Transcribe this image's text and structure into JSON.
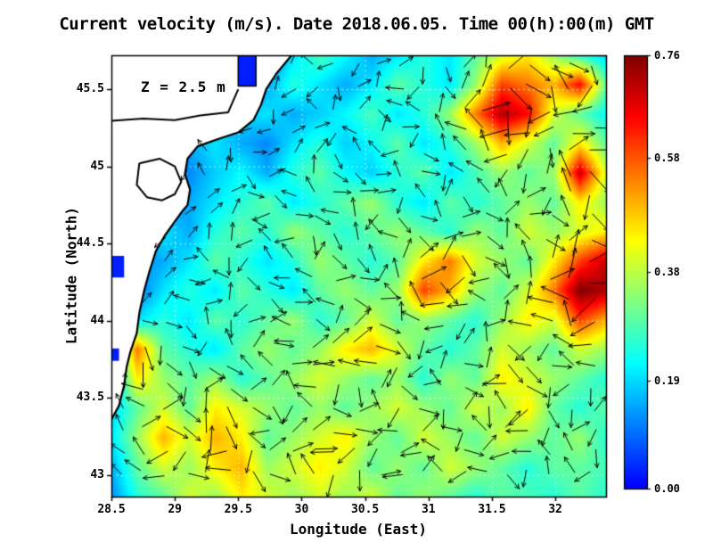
{
  "chart_data": {
    "type": "heatmap",
    "title": "Current velocity (m/s). Date 2018.06.05. Time 00(h):00(m) GMT",
    "annotation": "Z = 2.5 m",
    "xlabel": "Longitude (East)",
    "ylabel": "Latitude (North)",
    "x_ticks": [
      "28.5",
      "29",
      "29.5",
      "30",
      "30.5",
      "31",
      "31.5",
      "32"
    ],
    "x_tick_values": [
      28.5,
      29,
      29.5,
      30,
      30.5,
      31,
      31.5,
      32
    ],
    "y_ticks": [
      "43",
      "43.5",
      "44",
      "44.5",
      "45",
      "45.5"
    ],
    "y_tick_values": [
      43,
      43.5,
      44,
      44.5,
      45,
      45.5
    ],
    "lon_min": 28.5,
    "lon_max": 32.4,
    "lat_min": 42.86,
    "lat_max": 45.72,
    "vmin": 0.0,
    "vmax": 0.76,
    "grid_on": true,
    "colorbar": {
      "ticks": [
        "0.76",
        "0.58",
        "0.38",
        "0.19",
        "0.00"
      ],
      "tick_values": [
        0.76,
        0.58,
        0.38,
        0.19,
        0.0
      ],
      "top_color": "#7f0000",
      "bottom_color": "#0040ff"
    },
    "nx": 20,
    "ny": 16,
    "values": [
      [
        0.1,
        0.1,
        0.12,
        0.15,
        0.12,
        0.05,
        0.1,
        0.2,
        0.28,
        0.22,
        0.15,
        0.2,
        0.25,
        0.2,
        0.3,
        0.4,
        0.45,
        0.35,
        0.25,
        0.18
      ],
      [
        0.08,
        0.1,
        0.12,
        0.1,
        0.15,
        0.08,
        0.15,
        0.25,
        0.2,
        0.15,
        0.2,
        0.3,
        0.25,
        0.2,
        0.35,
        0.6,
        0.55,
        0.5,
        0.65,
        0.3
      ],
      [
        0.08,
        0.1,
        0.1,
        0.12,
        0.15,
        0.18,
        0.2,
        0.15,
        0.18,
        0.22,
        0.28,
        0.2,
        0.25,
        0.35,
        0.55,
        0.72,
        0.65,
        0.4,
        0.3,
        0.22
      ],
      [
        0.1,
        0.08,
        0.12,
        0.15,
        0.2,
        0.15,
        0.12,
        0.2,
        0.25,
        0.18,
        0.22,
        0.3,
        0.2,
        0.25,
        0.35,
        0.5,
        0.4,
        0.3,
        0.45,
        0.3
      ],
      [
        0.08,
        0.1,
        0.15,
        0.12,
        0.18,
        0.22,
        0.15,
        0.25,
        0.3,
        0.22,
        0.18,
        0.25,
        0.3,
        0.2,
        0.28,
        0.35,
        0.3,
        0.35,
        0.7,
        0.4
      ],
      [
        0.1,
        0.12,
        0.1,
        0.15,
        0.2,
        0.25,
        0.3,
        0.2,
        0.25,
        0.3,
        0.35,
        0.25,
        0.2,
        0.3,
        0.25,
        0.3,
        0.35,
        0.3,
        0.45,
        0.35
      ],
      [
        0.12,
        0.15,
        0.2,
        0.15,
        0.25,
        0.3,
        0.25,
        0.35,
        0.3,
        0.25,
        0.3,
        0.35,
        0.3,
        0.25,
        0.35,
        0.3,
        0.4,
        0.35,
        0.4,
        0.45
      ],
      [
        0.1,
        0.12,
        0.15,
        0.2,
        0.3,
        0.25,
        0.2,
        0.25,
        0.35,
        0.3,
        0.25,
        0.3,
        0.45,
        0.55,
        0.4,
        0.35,
        0.3,
        0.45,
        0.6,
        0.7
      ],
      [
        0.12,
        0.1,
        0.2,
        0.25,
        0.2,
        0.3,
        0.25,
        0.2,
        0.3,
        0.35,
        0.3,
        0.35,
        0.6,
        0.5,
        0.35,
        0.3,
        0.4,
        0.55,
        0.76,
        0.72
      ],
      [
        0.15,
        0.2,
        0.25,
        0.2,
        0.3,
        0.25,
        0.3,
        0.35,
        0.25,
        0.3,
        0.4,
        0.3,
        0.35,
        0.3,
        0.25,
        0.35,
        0.45,
        0.4,
        0.6,
        0.5
      ],
      [
        0.2,
        0.55,
        0.3,
        0.25,
        0.2,
        0.3,
        0.35,
        0.3,
        0.35,
        0.45,
        0.5,
        0.4,
        0.3,
        0.25,
        0.3,
        0.4,
        0.35,
        0.3,
        0.4,
        0.35
      ],
      [
        0.15,
        0.45,
        0.35,
        0.3,
        0.35,
        0.25,
        0.3,
        0.35,
        0.4,
        0.35,
        0.3,
        0.35,
        0.25,
        0.35,
        0.3,
        0.45,
        0.4,
        0.35,
        0.3,
        0.25
      ],
      [
        0.18,
        0.3,
        0.4,
        0.3,
        0.45,
        0.4,
        0.35,
        0.3,
        0.35,
        0.3,
        0.35,
        0.4,
        0.35,
        0.3,
        0.4,
        0.35,
        0.45,
        0.3,
        0.25,
        0.3
      ],
      [
        0.2,
        0.35,
        0.5,
        0.4,
        0.5,
        0.45,
        0.3,
        0.35,
        0.4,
        0.45,
        0.35,
        0.3,
        0.4,
        0.35,
        0.3,
        0.4,
        0.35,
        0.3,
        0.35,
        0.25
      ],
      [
        0.15,
        0.3,
        0.4,
        0.35,
        0.45,
        0.5,
        0.35,
        0.4,
        0.45,
        0.4,
        0.3,
        0.35,
        0.3,
        0.4,
        0.35,
        0.3,
        0.25,
        0.3,
        0.3,
        0.28
      ],
      [
        0.12,
        0.25,
        0.3,
        0.4,
        0.35,
        0.45,
        0.4,
        0.35,
        0.4,
        0.35,
        0.4,
        0.3,
        0.35,
        0.3,
        0.25,
        0.3,
        0.28,
        0.25,
        0.3,
        0.25
      ]
    ],
    "coastline": [
      [
        29.92,
        45.72
      ],
      [
        29.8,
        45.6
      ],
      [
        29.72,
        45.5
      ],
      [
        29.68,
        45.4
      ],
      [
        29.62,
        45.3
      ],
      [
        29.5,
        45.22
      ],
      [
        29.35,
        45.18
      ],
      [
        29.18,
        45.13
      ],
      [
        29.1,
        45.05
      ],
      [
        29.08,
        44.95
      ],
      [
        29.12,
        44.85
      ],
      [
        29.1,
        44.75
      ],
      [
        29.05,
        44.7
      ],
      [
        28.98,
        44.62
      ],
      [
        28.92,
        44.55
      ],
      [
        28.85,
        44.45
      ],
      [
        28.8,
        44.32
      ],
      [
        28.76,
        44.2
      ],
      [
        28.72,
        44.05
      ],
      [
        28.7,
        43.92
      ],
      [
        28.65,
        43.8
      ],
      [
        28.62,
        43.7
      ],
      [
        28.6,
        43.58
      ],
      [
        28.56,
        43.45
      ],
      [
        28.5,
        43.36
      ]
    ],
    "river_line": [
      [
        28.5,
        45.295
      ],
      [
        28.75,
        45.31
      ],
      [
        29.0,
        45.3
      ],
      [
        29.2,
        45.33
      ],
      [
        29.42,
        45.35
      ],
      [
        29.5,
        45.5
      ]
    ],
    "lagoon": [
      [
        28.72,
        45.02
      ],
      [
        28.88,
        45.05
      ],
      [
        29.0,
        45.0
      ],
      [
        29.05,
        44.9
      ],
      [
        29.0,
        44.82
      ],
      [
        28.9,
        44.78
      ],
      [
        28.78,
        44.8
      ],
      [
        28.7,
        44.88
      ],
      [
        28.72,
        45.02
      ]
    ],
    "lakes": [
      {
        "lon0": 28.5,
        "lon1": 28.6,
        "lat0": 44.28,
        "lat1": 44.42
      },
      {
        "lon0": 28.5,
        "lon1": 28.56,
        "lat0": 43.74,
        "lat1": 43.82
      }
    ],
    "delta_notch": {
      "lon0": 29.5,
      "lon1": 29.64,
      "lat0": 45.52,
      "lat1": 45.72
    }
  }
}
